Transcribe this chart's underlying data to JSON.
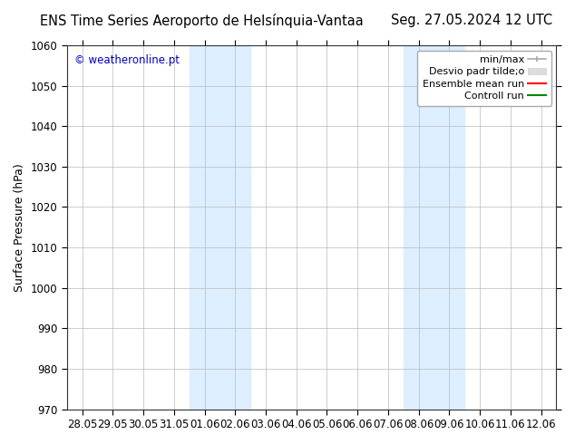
{
  "title_left": "ENS Time Series Aeroporto de Helsínquia-Vantaa",
  "title_right": "Seg. 27.05.2024 12 UTC",
  "ylabel": "Surface Pressure (hPa)",
  "watermark": "© weatheronline.pt",
  "watermark_color": "#0000bb",
  "ylim": [
    970,
    1060
  ],
  "yticks": [
    970,
    980,
    990,
    1000,
    1010,
    1020,
    1030,
    1040,
    1050,
    1060
  ],
  "xtick_labels": [
    "28.05",
    "29.05",
    "30.05",
    "31.05",
    "01.06",
    "02.06",
    "03.06",
    "04.06",
    "05.06",
    "06.06",
    "07.06",
    "08.06",
    "09.06",
    "10.06",
    "11.06",
    "12.06"
  ],
  "shaded_bands": [
    {
      "xstart": 4,
      "xend": 6,
      "color": "#ddeeff"
    },
    {
      "xstart": 11,
      "xend": 13,
      "color": "#ddeeff"
    }
  ],
  "background_color": "#ffffff",
  "plot_bg_color": "#ffffff",
  "grid_color": "#bbbbbb",
  "tick_fontsize": 8.5,
  "title_fontsize": 10.5,
  "ylabel_fontsize": 9,
  "legend_fontsize": 8
}
